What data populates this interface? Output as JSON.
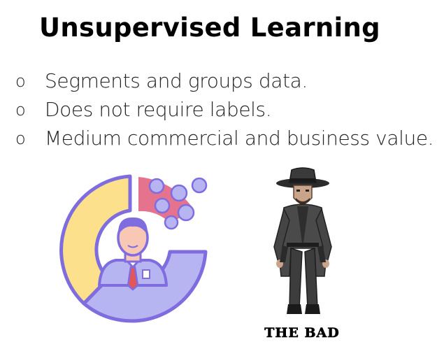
{
  "slide": {
    "title": "Unsupervised Learning",
    "bullet_marker": "o",
    "bullets": [
      "Segments and groups data.",
      "Does not require labels.",
      "Medium commercial and business value."
    ]
  },
  "illustration": {
    "icon": "person-in-donut-chart-icon",
    "colors": {
      "yellow_segment": "#FDE08B",
      "lavender_segment": "#B7B4F2",
      "pink_segment": "#E5738D",
      "purple_outline": "#7F6DE0",
      "skin": "#F9C8B5",
      "tie": "#E1575A"
    }
  },
  "character": {
    "icon": "cowboy-villain-icon",
    "caption": "THE BAD"
  }
}
